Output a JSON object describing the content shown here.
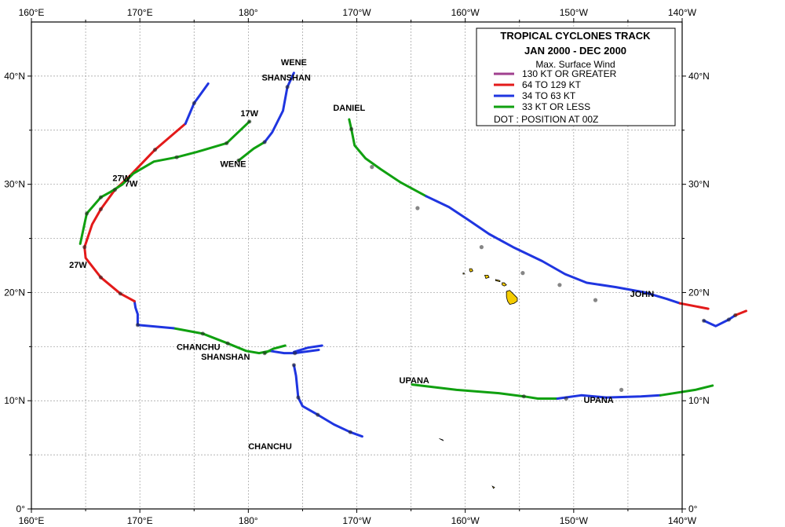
{
  "title": "TROPICAL  CYCLONES TRACK",
  "period": "JAN 2000  -  DEC 2000",
  "legend": {
    "heading": "Max. Surface Wind",
    "items": [
      {
        "label": "130 KT OR GREATER",
        "color": "#a0408f"
      },
      {
        "label": "64 TO 129 KT",
        "color": "#e31a1a"
      },
      {
        "label": "34 TO 63 KT",
        "color": "#1f35e0"
      },
      {
        "label": "33 KT OR LESS",
        "color": "#10a010"
      }
    ],
    "dot_note": "DOT : POSITION AT 00Z"
  },
  "axes": {
    "x_ticks": [
      "160°E",
      "170°E",
      "180°",
      "170°W",
      "160°W",
      "150°W",
      "140°W"
    ],
    "y_ticks_left": [
      "0°",
      "10°N",
      "20°N",
      "30°N",
      "40°N"
    ],
    "y_ticks_right": [
      "0°",
      "10°N",
      "20°N",
      "30°N",
      "40°N"
    ]
  },
  "storm_labels": [
    {
      "text": "SHANSHAN",
      "lon": 183.5,
      "lat": 39.6
    },
    {
      "text": "WENE",
      "lon": 184.2,
      "lat": 41.0
    },
    {
      "text": "17W",
      "lon": 180.1,
      "lat": 36.3
    },
    {
      "text": "WENE",
      "lon": 178.6,
      "lat": 31.6
    },
    {
      "text": "DANIEL",
      "lon": 189.3,
      "lat": 36.8
    },
    {
      "text": "27W",
      "lon": 168.3,
      "lat": 30.3
    },
    {
      "text": "7W",
      "lon": 169.2,
      "lat": 29.8
    },
    {
      "text": "27W",
      "lon": 164.3,
      "lat": 22.3
    },
    {
      "text": "CHANCHU",
      "lon": 175.4,
      "lat": 14.7
    },
    {
      "text": "SHANSHAN",
      "lon": 177.9,
      "lat": 13.8
    },
    {
      "text": "CHANCHU",
      "lon": 182.0,
      "lat": 5.5
    },
    {
      "text": "UPANA",
      "lon": 195.3,
      "lat": 11.6
    },
    {
      "text": "UPANA",
      "lon": 212.3,
      "lat": 9.8
    },
    {
      "text": "JOHN",
      "lon": 216.3,
      "lat": 19.6
    }
  ],
  "tracks": [
    {
      "name": "SHANSHAN",
      "segments": [
        {
          "w": "ts",
          "pts": [
            [
              184.2,
              13.3
            ],
            [
              184.4,
              12.3
            ],
            [
              184.6,
              10.3
            ],
            [
              185,
              9.5
            ],
            [
              186.4,
              8.7
            ],
            [
              187.9,
              7.8
            ],
            [
              189.4,
              7.1
            ],
            [
              190.5,
              6.7
            ]
          ]
        },
        {
          "w": "ts",
          "pts": [
            [
              184.2,
              14.5
            ],
            [
              185.5,
              14.9
            ],
            [
              186.8,
              15.1
            ]
          ]
        },
        {
          "w": "td",
          "pts": [
            [
              183.4,
              15.1
            ],
            [
              182.3,
              14.8
            ],
            [
              181.5,
              14.4
            ]
          ]
        },
        {
          "w": "ts",
          "pts": [
            [
              186.5,
              14.7
            ],
            [
              184.3,
              14.4
            ],
            [
              183.3,
              14.4
            ],
            [
              182.0,
              14.6
            ]
          ]
        },
        {
          "w": "td",
          "pts": [
            [
              182.0,
              14.6
            ],
            [
              181.0,
              14.4
            ],
            [
              179.8,
              14.6
            ],
            [
              178.1,
              15.3
            ],
            [
              175.8,
              16.2
            ],
            [
              173.1,
              16.7
            ]
          ]
        },
        {
          "w": "ts",
          "pts": [
            [
              173.1,
              16.7
            ],
            [
              169.8,
              17.0
            ],
            [
              169.8,
              18.0
            ],
            [
              169.6,
              18.6
            ],
            [
              169.5,
              19.2
            ]
          ]
        },
        {
          "w": "ty",
          "pts": [
            [
              169.5,
              19.2
            ],
            [
              168.2,
              19.9
            ],
            [
              166.4,
              21.4
            ],
            [
              165.0,
              23.2
            ],
            [
              164.9,
              24.2
            ],
            [
              165.6,
              26.3
            ],
            [
              166.4,
              27.7
            ],
            [
              167.7,
              29.5
            ],
            [
              168.9,
              30.6
            ],
            [
              171.4,
              33.2
            ],
            [
              174.2,
              35.6
            ]
          ]
        },
        {
          "w": "ts",
          "pts": [
            [
              174.2,
              35.6
            ],
            [
              175.0,
              37.5
            ],
            [
              176.3,
              39.3
            ]
          ]
        }
      ]
    },
    {
      "name": "27W",
      "segments": [
        {
          "w": "td",
          "pts": [
            [
              164.5,
              24.5
            ],
            [
              165.1,
              27.3
            ],
            [
              166.4,
              28.8
            ],
            [
              167.3,
              29.3
            ],
            [
              168.4,
              30.0
            ],
            [
              169.4,
              31.0
            ],
            [
              171.3,
              32.1
            ],
            [
              173.4,
              32.5
            ],
            [
              175.3,
              33.0
            ],
            [
              178.0,
              33.8
            ],
            [
              180.1,
              35.8
            ]
          ]
        }
      ]
    },
    {
      "name": "WENE",
      "segments": [
        {
          "w": "td",
          "pts": [
            [
              179.1,
              32.2
            ],
            [
              180.5,
              33.3
            ],
            [
              181.5,
              33.9
            ]
          ]
        },
        {
          "w": "ts",
          "pts": [
            [
              181.5,
              33.9
            ],
            [
              182.2,
              34.8
            ],
            [
              183.2,
              36.8
            ],
            [
              183.6,
              39.0
            ],
            [
              184.2,
              40.3
            ]
          ]
        }
      ]
    },
    {
      "name": "DANIEL",
      "segments": [
        {
          "w": "td",
          "pts": [
            [
              189.3,
              36.0
            ],
            [
              189.5,
              35.1
            ],
            [
              189.8,
              33.6
            ],
            [
              190.8,
              32.4
            ],
            [
              192.2,
              31.4
            ],
            [
              194.0,
              30.2
            ],
            [
              196.4,
              28.9
            ]
          ]
        },
        {
          "w": "ts",
          "pts": [
            [
              196.4,
              28.9
            ],
            [
              198.5,
              27.9
            ],
            [
              200.3,
              26.7
            ],
            [
              202.2,
              25.4
            ],
            [
              204.4,
              24.2
            ],
            [
              207.1,
              22.9
            ],
            [
              209.2,
              21.7
            ],
            [
              211.2,
              20.9
            ],
            [
              213.9,
              20.5
            ],
            [
              216.6,
              20.0
            ],
            [
              218.6,
              19.4
            ],
            [
              219.8,
              19.0
            ]
          ]
        },
        {
          "w": "ty",
          "pts": [
            [
              219.8,
              19.0
            ],
            [
              222.4,
              18.5
            ]
          ]
        }
      ]
    },
    {
      "name": "UPANA",
      "segments": [
        {
          "w": "td",
          "pts": [
            [
              195.1,
              11.5
            ],
            [
              199.2,
              11.0
            ],
            [
              203.1,
              10.7
            ],
            [
              205.4,
              10.4
            ],
            [
              206.7,
              10.2
            ],
            [
              208.5,
              10.2
            ]
          ]
        },
        {
          "w": "ts",
          "pts": [
            [
              208.5,
              10.2
            ],
            [
              210.7,
              10.5
            ],
            [
              213.0,
              10.3
            ],
            [
              216.2,
              10.4
            ],
            [
              218.0,
              10.5
            ]
          ]
        },
        {
          "w": "td",
          "pts": [
            [
              218.0,
              10.5
            ],
            [
              221.2,
              11.0
            ],
            [
              222.8,
              11.4
            ]
          ]
        }
      ]
    },
    {
      "name": "JOHN",
      "segments": [
        {
          "w": "ts",
          "pts": [
            [
              222.0,
              17.4
            ],
            [
              223.1,
              16.9
            ],
            [
              224.3,
              17.5
            ],
            [
              224.9,
              17.9
            ]
          ]
        },
        {
          "w": "ty",
          "pts": [
            [
              224.9,
              17.9
            ],
            [
              225.9,
              18.3
            ]
          ]
        }
      ]
    }
  ],
  "dots": [
    [
      184.2,
      13.3
    ],
    [
      184.6,
      10.3
    ],
    [
      186.4,
      8.7
    ],
    [
      189.4,
      7.1
    ],
    [
      181.5,
      14.4
    ],
    [
      184.3,
      14.4
    ],
    [
      178.1,
      15.3
    ],
    [
      175.8,
      16.2
    ],
    [
      169.8,
      17.0
    ],
    [
      168.2,
      19.9
    ],
    [
      166.4,
      21.4
    ],
    [
      164.9,
      24.2
    ],
    [
      166.4,
      27.7
    ],
    [
      167.7,
      29.5
    ],
    [
      171.4,
      33.2
    ],
    [
      175.0,
      37.5
    ],
    [
      165.1,
      27.3
    ],
    [
      166.4,
      28.8
    ],
    [
      173.4,
      32.5
    ],
    [
      178.0,
      33.8
    ],
    [
      180.1,
      35.8
    ],
    [
      179.1,
      32.2
    ],
    [
      181.5,
      33.9
    ],
    [
      183.6,
      39.0
    ],
    [
      189.5,
      35.1
    ],
    [
      191.4,
      31.6
    ],
    [
      195.6,
      27.8
    ],
    [
      201.5,
      24.2
    ],
    [
      205.3,
      21.8
    ],
    [
      208.7,
      20.7
    ],
    [
      212.0,
      19.3
    ],
    [
      205.4,
      10.4
    ],
    [
      209.3,
      10.2
    ],
    [
      214.4,
      11.0
    ],
    [
      222.0,
      17.4
    ],
    [
      224.3,
      17.5
    ],
    [
      224.9,
      17.9
    ]
  ],
  "islands": [
    {
      "name": "hawaii",
      "pts": [
        [
          203.8,
          20.1
        ],
        [
          204.1,
          20.2
        ],
        [
          204.5,
          19.8
        ],
        [
          204.8,
          19.5
        ],
        [
          204.8,
          19.2
        ],
        [
          204.5,
          19.0
        ],
        [
          204.1,
          18.9
        ],
        [
          203.9,
          19.2
        ],
        [
          203.8,
          19.6
        ]
      ]
    },
    {
      "name": "maui",
      "pts": [
        [
          203.4,
          20.9
        ],
        [
          203.6,
          20.9
        ],
        [
          203.8,
          20.7
        ],
        [
          203.6,
          20.6
        ],
        [
          203.4,
          20.7
        ]
      ]
    },
    {
      "name": "molokai",
      "pts": [
        [
          202.8,
          21.2
        ],
        [
          203.2,
          21.1
        ],
        [
          203.2,
          21.0
        ],
        [
          202.8,
          21.1
        ]
      ]
    },
    {
      "name": "oahu",
      "pts": [
        [
          201.8,
          21.6
        ],
        [
          202.1,
          21.6
        ],
        [
          202.2,
          21.4
        ],
        [
          201.9,
          21.3
        ]
      ]
    },
    {
      "name": "kauai",
      "pts": [
        [
          200.4,
          22.2
        ],
        [
          200.6,
          22.2
        ],
        [
          200.7,
          22.0
        ],
        [
          200.5,
          21.9
        ],
        [
          200.4,
          22.0
        ]
      ]
    },
    {
      "name": "niihau",
      "pts": [
        [
          199.8,
          21.8
        ],
        [
          199.9,
          21.8
        ],
        [
          199.9,
          21.7
        ],
        [
          199.8,
          21.7
        ]
      ]
    },
    {
      "name": "kingman",
      "pts": [
        [
          197.6,
          6.5
        ],
        [
          197.9,
          6.4
        ],
        [
          198.0,
          6.3
        ],
        [
          197.8,
          6.4
        ]
      ]
    },
    {
      "name": "christmas",
      "pts": [
        [
          202.5,
          2.1
        ],
        [
          202.7,
          2.0
        ],
        [
          202.6,
          1.9
        ]
      ]
    }
  ]
}
